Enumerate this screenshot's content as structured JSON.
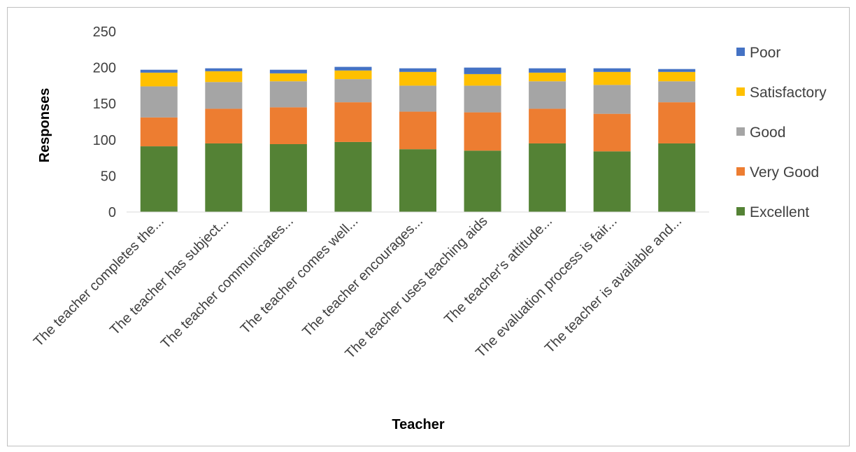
{
  "chart_data": {
    "type": "bar",
    "stacked": true,
    "title": "",
    "xlabel": "Teacher",
    "ylabel": "Responses",
    "ylim": [
      0,
      250
    ],
    "yticks": [
      0,
      50,
      100,
      150,
      200,
      250
    ],
    "grid": false,
    "legend_position": "right",
    "categories": [
      "The teacher completes the...",
      "The teacher has subject...",
      "The teacher communicates...",
      "The teacher comes well...",
      "The teacher encourages...",
      "The teacher uses teaching aids",
      "The teacher's attitude...",
      "The evaluation process is fair...",
      "The teacher is available and..."
    ],
    "series": [
      {
        "name": "Excellent",
        "color": "#548235",
        "values": [
          91,
          95,
          94,
          97,
          87,
          85,
          95,
          84,
          95
        ]
      },
      {
        "name": "Very Good",
        "color": "#ed7d31",
        "values": [
          40,
          48,
          51,
          55,
          52,
          53,
          48,
          52,
          57
        ]
      },
      {
        "name": "Good",
        "color": "#a5a5a5",
        "values": [
          43,
          37,
          36,
          32,
          36,
          37,
          38,
          40,
          29
        ]
      },
      {
        "name": "Satisfactory",
        "color": "#ffc000",
        "values": [
          19,
          15,
          11,
          12,
          19,
          16,
          12,
          18,
          13
        ]
      },
      {
        "name": "Poor",
        "color": "#4472c4",
        "values": [
          4,
          4,
          5,
          5,
          5,
          9,
          6,
          5,
          4
        ]
      }
    ],
    "legend_order": [
      "Poor",
      "Satisfactory",
      "Good",
      "Very Good",
      "Excellent"
    ]
  }
}
